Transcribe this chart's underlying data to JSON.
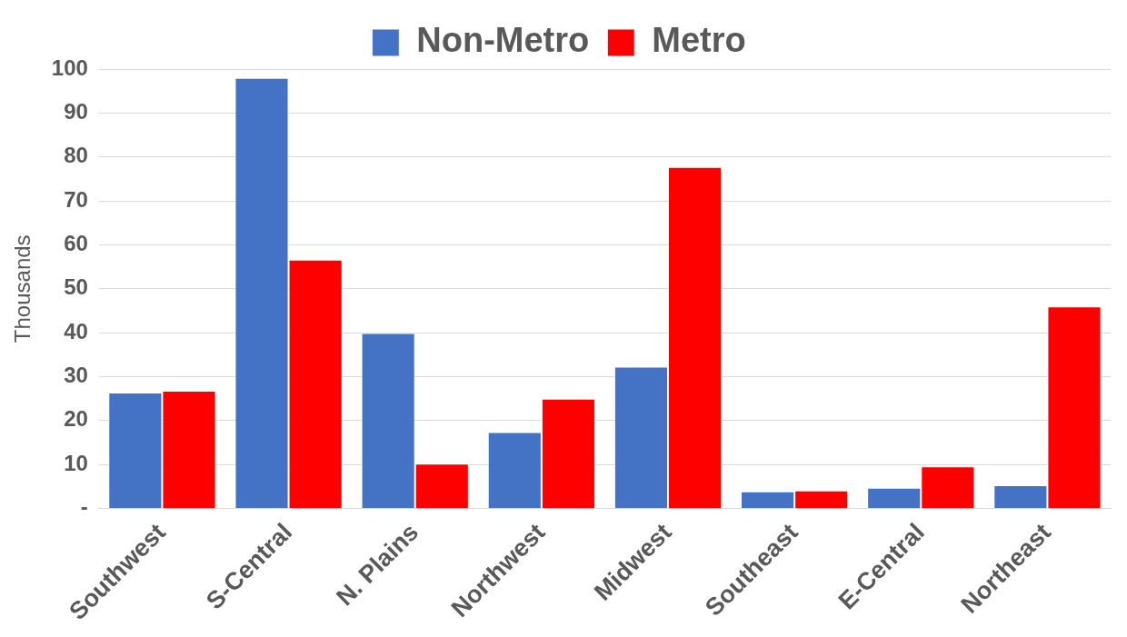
{
  "chart_data": {
    "type": "bar",
    "ylabel": "Thousands",
    "categories": [
      "Southwest",
      "S-Central",
      "N. Plains",
      "Northwest",
      "Midwest",
      "Southeast",
      "E-Central",
      "Northeast"
    ],
    "series": [
      {
        "name": "Non-Metro",
        "color": "#4472c4",
        "values": [
          26.4,
          98,
          39.9,
          17.4,
          32.3,
          3.9,
          4.7,
          5.3
        ]
      },
      {
        "name": "Metro",
        "color": "#ff0000",
        "values": [
          26.8,
          56.6,
          10.2,
          25,
          77.7,
          4.1,
          9.6,
          46
        ]
      }
    ],
    "ylim": [
      0,
      100
    ],
    "yticks": [
      {
        "value": 0,
        "label": "-"
      },
      10,
      20,
      30,
      40,
      50,
      60,
      70,
      80,
      90,
      100
    ],
    "grid": "y",
    "legend": "top"
  }
}
